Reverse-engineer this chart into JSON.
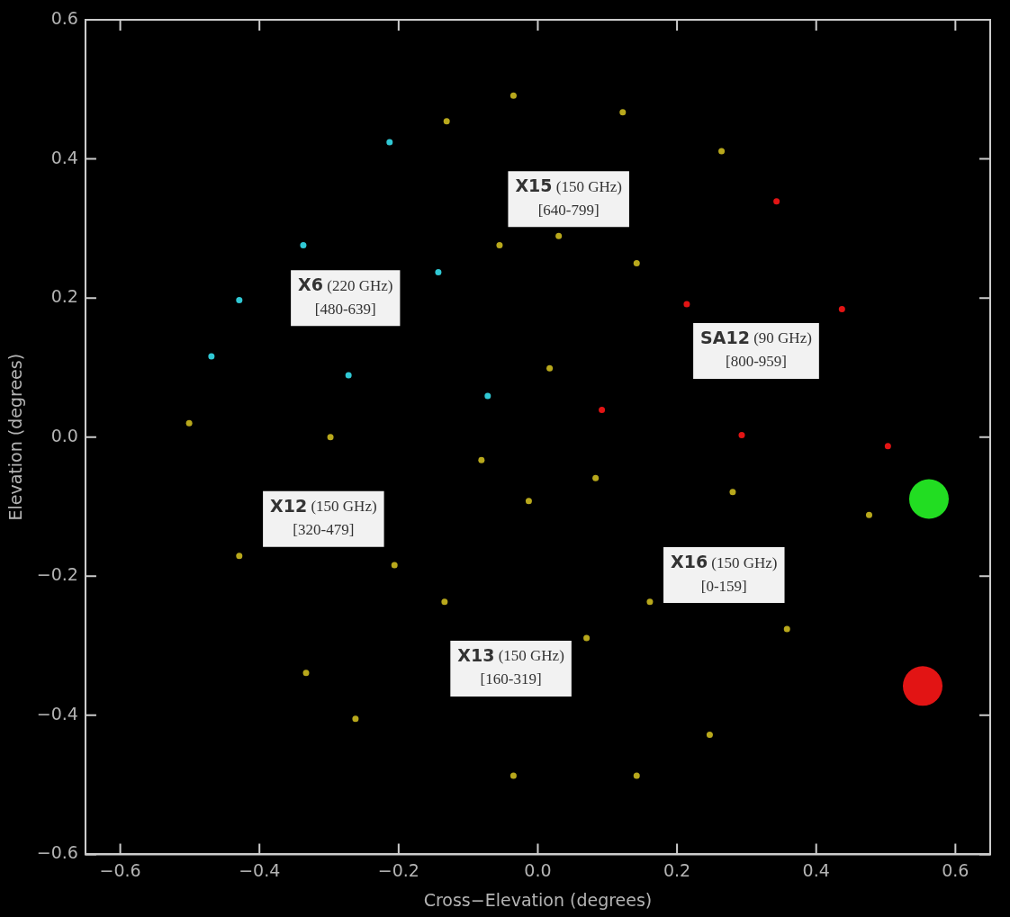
{
  "chart_data": {
    "type": "scatter",
    "xlabel": "Cross−Elevation (degrees)",
    "ylabel": "Elevation (degrees)",
    "xlim": [
      -0.65,
      0.65
    ],
    "ylim": [
      -0.6,
      0.6
    ],
    "xticks": [
      -0.6,
      -0.4,
      -0.2,
      {
        "value": 0,
        "label": "0.0"
      },
      0.2,
      0.4,
      0.6
    ],
    "yticks": [
      -0.6,
      -0.4,
      -0.2,
      {
        "value": 0,
        "label": "0.0"
      },
      0.2,
      0.4,
      0.6
    ],
    "grid": false,
    "legend": false,
    "marker": "circle",
    "series": [
      {
        "color": "#b8a81c",
        "x": [
          -0.131,
          -0.035,
          0.122,
          0.264,
          0.017,
          -0.055,
          0.142,
          0.03
        ],
        "values": [
          0.454,
          0.491,
          0.467,
          0.411,
          0.099,
          0.276,
          0.25,
          0.289
        ]
      },
      {
        "color": "#30c8d4",
        "x": [
          -0.213,
          -0.469,
          -0.072,
          -0.337,
          -0.272,
          -0.143,
          -0.429
        ],
        "values": [
          0.424,
          0.116,
          0.059,
          0.276,
          0.089,
          0.237,
          0.197
        ]
      },
      {
        "color": "#e21414",
        "x": [
          0.343,
          0.092,
          0.503,
          0.293,
          0.214,
          0.437
        ],
        "values": [
          0.339,
          0.039,
          -0.013,
          0.003,
          0.191,
          0.184
        ]
      },
      {
        "color": "#b8a81c",
        "x": [
          -0.501,
          -0.081,
          -0.333,
          -0.298,
          -0.429,
          -0.206
        ],
        "values": [
          0.02,
          -0.033,
          -0.339,
          0.0,
          -0.171,
          -0.184
        ]
      },
      {
        "color": "#b8a81c",
        "x": [
          -0.013,
          -0.262,
          0.142,
          -0.035,
          -0.134,
          0.07
        ],
        "values": [
          -0.092,
          -0.405,
          -0.487,
          -0.487,
          -0.237,
          -0.289
        ]
      },
      {
        "color": "#b8a81c",
        "x": [
          0.083,
          0.476,
          0.247,
          0.28,
          0.161,
          0.358
        ],
        "values": [
          -0.059,
          -0.112,
          -0.428,
          -0.079,
          -0.237,
          -0.276
        ]
      },
      {
        "type": "bubble",
        "color": "#22dd22",
        "x": [
          0.562
        ],
        "values": [
          -0.089
        ],
        "sizes": [
          1
        ]
      },
      {
        "type": "bubble",
        "color": "#e21414",
        "x": [
          0.553
        ],
        "values": [
          -0.358
        ],
        "sizes": [
          1
        ]
      }
    ],
    "annotations": [
      "X15 (150 GHz)\n[640-799]",
      "X6 (220 GHz)\n[480-639]",
      "SA12 (90 GHz)\n[800-959]",
      "X12 (150 GHz)\n[320-479]",
      "X13 (150 GHz)\n[160-319]",
      "X16 (150 GHz)\n[0-159]"
    ]
  }
}
